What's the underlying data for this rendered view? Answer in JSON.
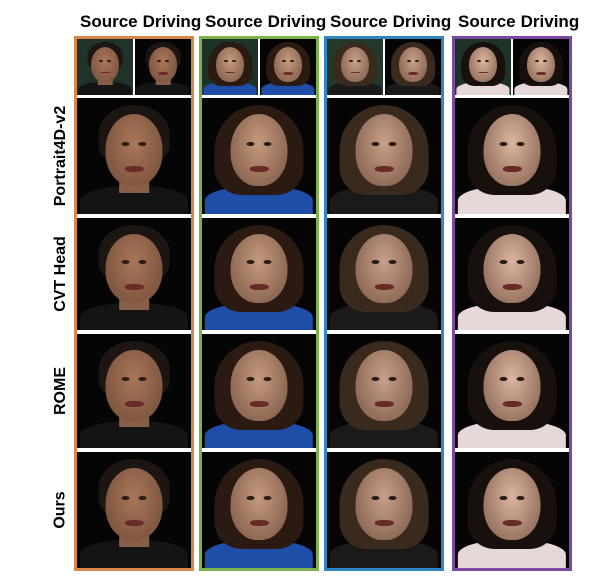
{
  "column_headers": {
    "source_label": "Source",
    "driving_label": "Driving"
  },
  "row_labels": [
    "Portrait4D-v2",
    "CVT Head",
    "ROME",
    "Ours"
  ],
  "groups": [
    {
      "name": "subject-1",
      "border_color": "#d9864a",
      "bg": "#1f3328",
      "skin": "#a9765a",
      "hair": "#1c1512",
      "clothes": "#141414",
      "long_hair": false
    },
    {
      "name": "subject-2",
      "border_color": "#7fb24f",
      "bg": "#1d3326",
      "skin": "#c59a80",
      "hair": "#2a1a12",
      "clothes": "#1f4ea8",
      "long_hair": true
    },
    {
      "name": "subject-3",
      "border_color": "#2f86c4",
      "bg": "#24382c",
      "skin": "#c8a08a",
      "hair": "#3a2a1e",
      "clothes": "#1a1a1a",
      "long_hair": true
    },
    {
      "name": "subject-4",
      "border_color": "#7a4aa0",
      "bg": "#1e3226",
      "skin": "#dcb59f",
      "hair": "#17100c",
      "clothes": "#e6d8d8",
      "long_hair": true
    }
  ]
}
